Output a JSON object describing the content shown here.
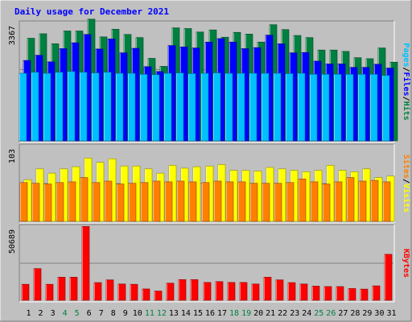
{
  "chart_data": {
    "type": "bar",
    "title": "Daily usage for December 2021",
    "categories": [
      "1",
      "2",
      "3",
      "4",
      "5",
      "6",
      "7",
      "8",
      "9",
      "10",
      "11",
      "12",
      "13",
      "14",
      "15",
      "16",
      "17",
      "18",
      "19",
      "20",
      "21",
      "22",
      "23",
      "24",
      "25",
      "26",
      "27",
      "28",
      "29",
      "30",
      "31"
    ],
    "weekend_days": [
      "4",
      "5",
      "11",
      "12",
      "18",
      "19",
      "25",
      "26"
    ],
    "panels": [
      {
        "name": "hits-files-pages",
        "ymax": 3367,
        "ymax_label": "3367",
        "legend": [
          "Pages",
          "/",
          "Files",
          "/",
          "Hits"
        ],
        "series": [
          {
            "name": "Hits",
            "color": "#008040",
            "values": [
              2960,
              3090,
              2800,
              3170,
              3170,
              3510,
              3000,
              3220,
              3070,
              2980,
              2380,
              2150,
              3260,
              3240,
              3140,
              3200,
              2990,
              3130,
              3080,
              2850,
              3350,
              3210,
              3040,
              2980,
              2620,
              2620,
              2580,
              2400,
              2370,
              2680,
              2270
            ]
          },
          {
            "name": "Files",
            "color": "#0000ff",
            "values": [
              2320,
              2470,
              2280,
              2660,
              2830,
              3070,
              2650,
              2940,
              2540,
              2670,
              2140,
              2000,
              2750,
              2710,
              2680,
              2850,
              2950,
              2850,
              2660,
              2690,
              3050,
              2800,
              2540,
              2550,
              2300,
              2220,
              2220,
              2120,
              2120,
              2210,
              2100
            ]
          },
          {
            "name": "Pages",
            "color": "#00c0ff",
            "values": [
              1950,
              1980,
              1950,
              1980,
              2000,
              1980,
              1960,
              1980,
              1950,
              1950,
              1920,
              1910,
              1950,
              1960,
              1940,
              1950,
              1960,
              1950,
              1950,
              1950,
              1950,
              1950,
              1940,
              1950,
              1920,
              1920,
              1920,
              1920,
              1920,
              1920,
              1890
            ]
          }
        ]
      },
      {
        "name": "visits-sites",
        "ymax": 103,
        "ymax_label": "103",
        "legend": [
          "Sites",
          "/",
          "Visits"
        ],
        "series": [
          {
            "name": "Visits",
            "color": "#ffff00",
            "values": [
              58,
              73,
              67,
              73,
              76,
              88,
              82,
              87,
              77,
              77,
              73,
              67,
              78,
              74,
              76,
              77,
              79,
              71,
              71,
              70,
              75,
              73,
              71,
              69,
              71,
              78,
              71,
              69,
              73,
              61,
              63
            ]
          },
          {
            "name": "Sites",
            "color": "#ff8000",
            "values": [
              54,
              53,
              52,
              54,
              55,
              61,
              54,
              56,
              52,
              53,
              54,
              56,
              55,
              56,
              55,
              54,
              56,
              55,
              55,
              53,
              53,
              53,
              54,
              59,
              55,
              52,
              55,
              61,
              56,
              57,
              55
            ]
          }
        ]
      },
      {
        "name": "kbytes",
        "ymax": 50689,
        "ymax_label": "50689",
        "legend": [
          "KBytes"
        ],
        "series": [
          {
            "name": "KBytes",
            "color": "#ff0000",
            "values": [
              11300,
              22400,
              11300,
              16300,
              16300,
              52200,
              12500,
              14400,
              11500,
              11300,
              8000,
              6500,
              12100,
              14600,
              14600,
              12600,
              13200,
              12600,
              12600,
              11500,
              16300,
              14400,
              12500,
              11500,
              10000,
              9700,
              9700,
              8300,
              7900,
              10200,
              32500
            ]
          }
        ]
      }
    ]
  }
}
